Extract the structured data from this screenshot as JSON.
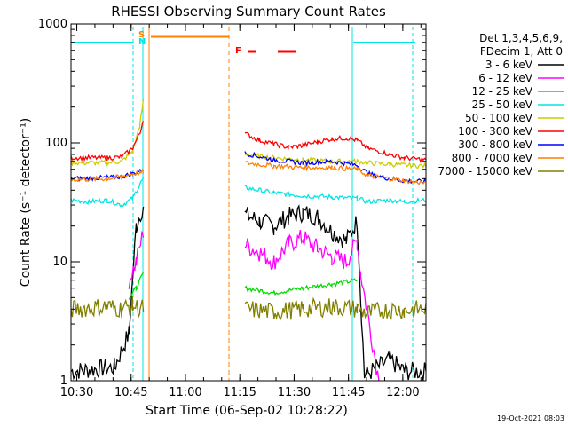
{
  "chart_data": {
    "type": "line",
    "title": "RHESSI Observing Summary Count Rates",
    "xlabel": "Start Time (06-Sep-02 10:28:22)",
    "ylabel": "Count Rate (s⁻¹ detector⁻¹)",
    "yscale": "log",
    "ylim": [
      1,
      1000
    ],
    "xlim_minutes": [
      0,
      98
    ],
    "x_unit": "minutes after 10:28:22",
    "x_ticks": [
      {
        "minutes": 1.6,
        "label": "10:30"
      },
      {
        "minutes": 16.6,
        "label": "10:45"
      },
      {
        "minutes": 31.6,
        "label": "11:00"
      },
      {
        "minutes": 46.6,
        "label": "11:15"
      },
      {
        "minutes": 61.6,
        "label": "11:30"
      },
      {
        "minutes": 76.6,
        "label": "11:45"
      },
      {
        "minutes": 91.6,
        "label": "12:00"
      }
    ],
    "y_ticks": [
      {
        "value": 1,
        "label": "1"
      },
      {
        "value": 10,
        "label": "10"
      },
      {
        "value": 100,
        "label": "100"
      },
      {
        "value": 1000,
        "label": "1000"
      }
    ],
    "legend_header": [
      "Det 1,3,4,5,6,9,",
      "FDecim 1, Att 0"
    ],
    "legend_position": "right",
    "series": [
      {
        "name": "3 - 6 keV",
        "color": "#000000",
        "x": [
          0,
          12,
          16,
          18,
          20,
          44,
          48,
          52,
          56,
          60,
          64,
          68,
          72,
          76,
          79,
          81,
          88,
          92,
          98
        ],
        "y": [
          1.2,
          1.3,
          2.5,
          20,
          30,
          null,
          25,
          22,
          20,
          24,
          26,
          24,
          18,
          15,
          22,
          1.1,
          1.5,
          1.2,
          1.2
        ]
      },
      {
        "name": "6 - 12 keV",
        "color": "#ff00ff",
        "x": [
          0,
          12,
          16,
          18,
          20,
          44,
          48,
          52,
          56,
          60,
          64,
          68,
          72,
          76,
          79,
          80,
          85,
          92,
          98
        ],
        "y": [
          null,
          null,
          7,
          10,
          18,
          null,
          14,
          12,
          10,
          14,
          16,
          13,
          11,
          10,
          15,
          8,
          1,
          null,
          null
        ]
      },
      {
        "name": "12 - 25 keV",
        "color": "#00dd00",
        "x": [
          0,
          12,
          16,
          18,
          20,
          44,
          48,
          56,
          64,
          72,
          79,
          80,
          92,
          98
        ],
        "y": [
          null,
          null,
          5,
          6,
          8,
          null,
          6,
          5.5,
          6,
          6.5,
          7,
          null,
          null,
          null
        ]
      },
      {
        "name": "25 - 50 keV",
        "color": "#00e5e5",
        "x": [
          0,
          5,
          10,
          14,
          17,
          19,
          20,
          44,
          48,
          56,
          64,
          72,
          79,
          82,
          88,
          92,
          98
        ],
        "y": [
          33,
          32,
          33,
          30,
          34,
          45,
          50,
          null,
          42,
          38,
          36,
          35,
          34,
          32,
          33,
          32,
          33
        ]
      },
      {
        "name": "50 - 100 keV",
        "color": "#cccc00",
        "x": [
          0,
          10,
          14,
          17,
          19,
          20,
          44,
          48,
          56,
          64,
          72,
          79,
          82,
          88,
          92,
          98
        ],
        "y": [
          68,
          68,
          70,
          85,
          140,
          230,
          null,
          80,
          75,
          72,
          70,
          70,
          68,
          66,
          65,
          64
        ]
      },
      {
        "name": "100 - 300 keV",
        "color": "#ff0000",
        "x": [
          0,
          10,
          14,
          17,
          19,
          20,
          44,
          48,
          52,
          56,
          60,
          64,
          68,
          72,
          76,
          79,
          82,
          88,
          92,
          98
        ],
        "y": [
          75,
          75,
          76,
          90,
          120,
          160,
          null,
          120,
          105,
          98,
          92,
          95,
          102,
          108,
          110,
          105,
          90,
          80,
          75,
          72
        ]
      },
      {
        "name": "300 - 800 keV",
        "color": "#0000ff",
        "x": [
          0,
          10,
          14,
          17,
          19,
          20,
          44,
          48,
          56,
          64,
          72,
          79,
          82,
          88,
          92,
          98
        ],
        "y": [
          50,
          51,
          52,
          55,
          58,
          60,
          null,
          82,
          72,
          68,
          70,
          65,
          55,
          50,
          48,
          47
        ]
      },
      {
        "name": "800 - 7000 keV",
        "color": "#ff8000",
        "x": [
          0,
          10,
          14,
          17,
          19,
          20,
          44,
          48,
          56,
          64,
          72,
          79,
          82,
          88,
          92,
          98
        ],
        "y": [
          49,
          50,
          52,
          55,
          56,
          57,
          null,
          68,
          64,
          62,
          62,
          60,
          53,
          50,
          48,
          46
        ]
      },
      {
        "name": "7000 - 15000 keV",
        "color": "#808000",
        "x": [
          0,
          10,
          14,
          17,
          19,
          20,
          44,
          48,
          56,
          64,
          72,
          79,
          82,
          88,
          92,
          98
        ],
        "y": [
          4,
          4.2,
          4,
          4.3,
          4,
          4.1,
          null,
          4,
          3.8,
          4,
          4.2,
          4,
          3.7,
          4,
          3.9,
          4
        ]
      }
    ],
    "annotations": [
      {
        "label": "S",
        "color": "#ff8000",
        "minutes": 19.2
      },
      {
        "label": "N",
        "color": "#00e5e5",
        "minutes": 19.2
      },
      {
        "label": "F",
        "color": "#ff0000",
        "minutes": 46.8
      }
    ],
    "footer_date": "19-Oct-2021 08:03"
  }
}
